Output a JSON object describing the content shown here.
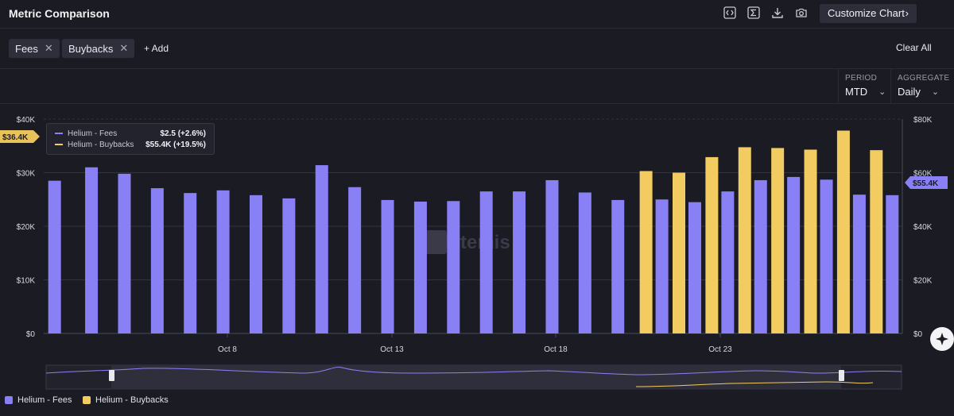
{
  "header": {
    "title": "Metric Comparison",
    "customize_label": "Customize Chart",
    "icons": [
      "code-icon",
      "sigma-icon",
      "download-icon",
      "camera-icon"
    ]
  },
  "filters": {
    "chips": [
      {
        "label": "Fees"
      },
      {
        "label": "Buybacks"
      }
    ],
    "add_label": "+ Add",
    "clear_label": "Clear All"
  },
  "controls": {
    "period_label": "PERIOD",
    "period_value": "MTD",
    "aggregate_label": "AGGREGATE",
    "aggregate_value": "Daily"
  },
  "tooltip": {
    "rows": [
      {
        "name": "Helium - Fees",
        "value": "$2.5 (+2.6%)",
        "color": "#8a80f5"
      },
      {
        "name": "Helium - Buybacks",
        "value": "$55.4K (+19.5%)",
        "color": "#f2cc60"
      }
    ]
  },
  "axis_badges": {
    "left": "$36.4K",
    "right": "$55.4K"
  },
  "watermark": "Artemis",
  "chart_data": {
    "type": "bar",
    "x_ticks": [
      "Oct 8",
      "Oct 13",
      "Oct 18",
      "Oct 23"
    ],
    "left_axis": {
      "ticks": [
        "$0",
        "$10K",
        "$20K",
        "$30K",
        "$40K"
      ],
      "ylim": [
        0,
        40000
      ]
    },
    "right_axis": {
      "ticks": [
        "$0",
        "$20K",
        "$40K",
        "$60K",
        "$80K"
      ],
      "ylim": [
        0,
        80000
      ]
    },
    "grid": true,
    "legend_position": "bottom-left",
    "series": [
      {
        "name": "Helium - Fees",
        "axis": "left",
        "color": "#8a80f5",
        "values": [
          28500,
          31000,
          29800,
          27100,
          26200,
          26700,
          25800,
          25200,
          31400,
          27300,
          24900,
          24600,
          24700,
          26500,
          26500,
          28600,
          26300,
          24900,
          25000,
          24500,
          26500,
          28600,
          29200,
          28700,
          25900,
          25800
        ]
      },
      {
        "name": "Helium - Buybacks",
        "axis": "right",
        "color": "#f2cc60",
        "values": [
          0,
          0,
          0,
          0,
          0,
          0,
          0,
          0,
          0,
          0,
          0,
          0,
          0,
          0,
          0,
          0,
          0,
          0,
          60600,
          60000,
          65800,
          69500,
          69200,
          68600,
          75700,
          68400
        ]
      }
    ],
    "legend": [
      "Helium - Fees",
      "Helium - Buybacks"
    ]
  }
}
